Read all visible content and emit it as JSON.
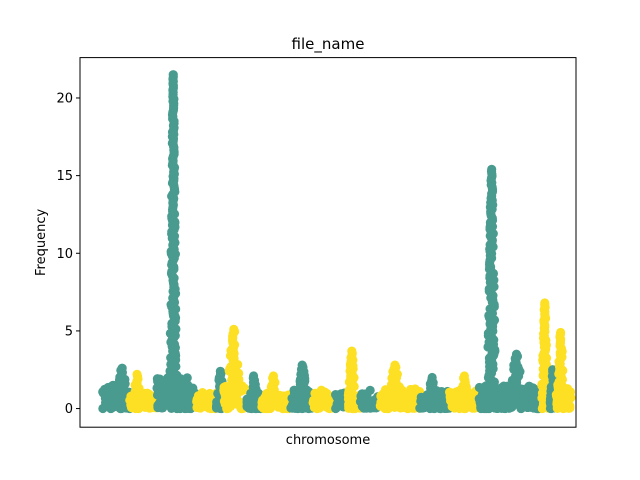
{
  "chart_data": {
    "type": "scatter",
    "title": "file_name",
    "xlabel": "chromosome",
    "ylabel": "Frequency",
    "ylim": [
      -1.2,
      22.6
    ],
    "yticks": [
      0,
      5,
      10,
      15,
      20
    ],
    "xlim": [
      0,
      100
    ],
    "grid": false,
    "legend": "none",
    "point_colors": [
      "#4a9b8f",
      "#fde024"
    ],
    "segments": [
      {
        "color_index": 0,
        "x_start": 4.5,
        "x_end": 10.0,
        "base_max": 1.6,
        "peak_center": 8.5,
        "peak_width": 0.8,
        "peak_height": 2.6
      },
      {
        "color_index": 1,
        "x_start": 10.0,
        "x_end": 15.5,
        "base_max": 1.0,
        "peak_center": 11.5,
        "peak_width": 0.5,
        "peak_height": 2.2
      },
      {
        "color_index": 0,
        "x_start": 15.5,
        "x_end": 23.5,
        "base_max": 2.0,
        "peak_center": 18.8,
        "peak_width": 0.35,
        "peak_height": 21.5
      },
      {
        "color_index": 1,
        "x_start": 23.5,
        "x_end": 27.5,
        "base_max": 1.0,
        "peak_center": 25.0,
        "peak_width": 0.5,
        "peak_height": 1.5
      },
      {
        "color_index": 0,
        "x_start": 27.5,
        "x_end": 29.0,
        "base_max": 1.2,
        "peak_center": 28.3,
        "peak_width": 0.4,
        "peak_height": 2.4
      },
      {
        "color_index": 1,
        "x_start": 29.0,
        "x_end": 33.5,
        "base_max": 1.5,
        "peak_center": 31.0,
        "peak_width": 0.8,
        "peak_height": 5.1
      },
      {
        "color_index": 0,
        "x_start": 33.5,
        "x_end": 36.5,
        "base_max": 1.0,
        "peak_center": 35.0,
        "peak_width": 0.5,
        "peak_height": 2.1
      },
      {
        "color_index": 1,
        "x_start": 36.5,
        "x_end": 42.5,
        "base_max": 1.0,
        "peak_center": 39.0,
        "peak_width": 0.6,
        "peak_height": 2.1
      },
      {
        "color_index": 0,
        "x_start": 42.5,
        "x_end": 47.0,
        "base_max": 1.2,
        "peak_center": 44.8,
        "peak_width": 0.6,
        "peak_height": 2.8
      },
      {
        "color_index": 1,
        "x_start": 47.0,
        "x_end": 51.5,
        "base_max": 1.0,
        "peak_center": 49.0,
        "peak_width": 0.6,
        "peak_height": 1.4
      },
      {
        "color_index": 0,
        "x_start": 51.5,
        "x_end": 54.0,
        "base_max": 1.0,
        "peak_center": 52.5,
        "peak_width": 0.6,
        "peak_height": 1.3
      },
      {
        "color_index": 1,
        "x_start": 54.0,
        "x_end": 56.5,
        "base_max": 1.0,
        "peak_center": 54.8,
        "peak_width": 0.4,
        "peak_height": 3.7
      },
      {
        "color_index": 0,
        "x_start": 56.5,
        "x_end": 60.5,
        "base_max": 1.0,
        "peak_center": 58.5,
        "peak_width": 0.6,
        "peak_height": 1.4
      },
      {
        "color_index": 1,
        "x_start": 60.5,
        "x_end": 68.5,
        "base_max": 1.3,
        "peak_center": 63.5,
        "peak_width": 0.8,
        "peak_height": 2.8
      },
      {
        "color_index": 0,
        "x_start": 68.5,
        "x_end": 74.5,
        "base_max": 1.2,
        "peak_center": 71.0,
        "peak_width": 0.6,
        "peak_height": 2.0
      },
      {
        "color_index": 1,
        "x_start": 74.5,
        "x_end": 80.5,
        "base_max": 1.2,
        "peak_center": 77.5,
        "peak_width": 0.6,
        "peak_height": 2.1
      },
      {
        "color_index": 0,
        "x_start": 80.5,
        "x_end": 84.5,
        "base_max": 1.5,
        "peak_center": 83.0,
        "peak_width": 0.45,
        "peak_height": 15.4
      },
      {
        "color_index": 0,
        "x_start": 84.5,
        "x_end": 93.0,
        "base_max": 1.5,
        "peak_center": 88.0,
        "peak_width": 0.8,
        "peak_height": 3.5
      },
      {
        "color_index": 1,
        "x_start": 93.0,
        "x_end": 94.8,
        "base_max": 1.2,
        "peak_center": 93.7,
        "peak_width": 0.35,
        "peak_height": 6.8
      },
      {
        "color_index": 0,
        "x_start": 94.8,
        "x_end": 96.0,
        "base_max": 1.0,
        "peak_center": 95.3,
        "peak_width": 0.3,
        "peak_height": 2.5
      },
      {
        "color_index": 1,
        "x_start": 96.0,
        "x_end": 99.0,
        "base_max": 1.3,
        "peak_center": 96.9,
        "peak_width": 0.4,
        "peak_height": 4.9
      }
    ]
  }
}
